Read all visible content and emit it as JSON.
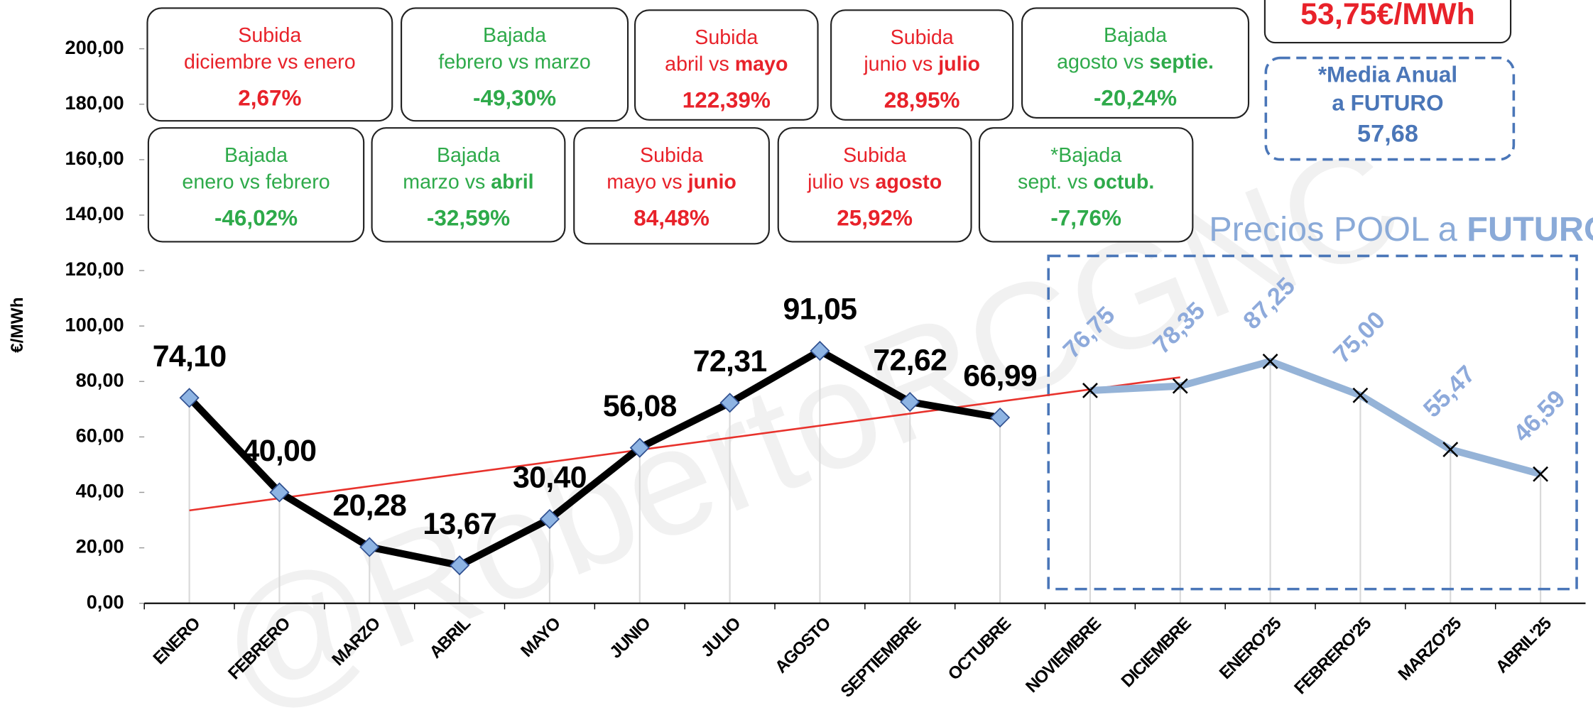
{
  "chart_data": {
    "type": "line",
    "y_label": "€/MWh",
    "categories": [
      "ENERO",
      "FEBRERO",
      "MARZO",
      "ABRIL",
      "MAYO",
      "JUNIO",
      "JULIO",
      "AGOSTO",
      "SEPTIEMBRE",
      "OCTUBRE",
      "NOVIEMBRE",
      "DICIEMBRE",
      "ENERO'25",
      "FEBRERO'25",
      "MARZO'25",
      "ABRIL'25"
    ],
    "series": [
      {
        "color": "#000000",
        "marker": "diamond",
        "marker_color": "#8eb4e3",
        "label_color": "#000000",
        "values": [
          74.1,
          40.0,
          20.28,
          13.67,
          30.4,
          56.08,
          72.31,
          91.05,
          72.62,
          66.99,
          null,
          null,
          null,
          null,
          null,
          null
        ],
        "value_labels": [
          "74,10",
          "40,00",
          "20,28",
          "13,67",
          "30,40",
          "56,08",
          "72,31",
          "91,05",
          "72,62",
          "66,99",
          null,
          null,
          null,
          null,
          null,
          null
        ]
      },
      {
        "color": "#95b3d7",
        "marker": "x",
        "marker_color": "#000000",
        "label_color": "#8eaadb",
        "label_rotation": -45,
        "values": [
          null,
          null,
          null,
          null,
          null,
          null,
          null,
          null,
          null,
          null,
          76.75,
          78.35,
          87.25,
          75.0,
          55.47,
          46.59
        ],
        "value_labels": [
          null,
          null,
          null,
          null,
          null,
          null,
          null,
          null,
          null,
          null,
          "76,75",
          "78,35",
          "87,25",
          "75,00",
          "55,47",
          "46,59"
        ]
      }
    ],
    "trendline": {
      "x": [
        "ENERO",
        "DICIEMBRE"
      ],
      "values": [
        33.5,
        81.5
      ],
      "color": "#e8322c"
    },
    "ylim": [
      0,
      200
    ],
    "yticks": [
      {
        "value": 0,
        "label": "0,00"
      },
      {
        "value": 20,
        "label": "20,00"
      },
      {
        "value": 40,
        "label": "40,00"
      },
      {
        "value": 60,
        "label": "60,00"
      },
      {
        "value": 80,
        "label": "80,00"
      },
      {
        "value": 100,
        "label": "100,00"
      },
      {
        "value": 120,
        "label": "120,00"
      },
      {
        "value": 140,
        "label": "140,00"
      },
      {
        "value": 160,
        "label": "160,00"
      },
      {
        "value": 180,
        "label": "180,00"
      },
      {
        "value": 200,
        "label": "200,00"
      }
    ],
    "drop_lines": true,
    "comparisons": [
      {
        "heading": "Subida",
        "text": "diciembre vs enero",
        "emph": "",
        "value": "2,67%",
        "color": "#e8222a"
      },
      {
        "heading": "Bajada",
        "text": "febrero vs marzo",
        "emph": "",
        "value": "-49,30%",
        "color": "#2eaa4a"
      },
      {
        "heading": "Subida",
        "text": "abril vs",
        "emph": "mayo",
        "value": "122,39%",
        "color": "#e8222a"
      },
      {
        "heading": "Subida",
        "text": "junio vs",
        "emph": "julio",
        "value": "28,95%",
        "color": "#e8222a"
      },
      {
        "heading": "Bajada",
        "text": "agosto vs",
        "emph": "septie.",
        "value": "-20,24%",
        "color": "#2eaa4a"
      },
      {
        "heading": "Bajada",
        "text": "enero vs febrero",
        "emph": "",
        "value": "-46,02%",
        "color": "#2eaa4a"
      },
      {
        "heading": "Bajada",
        "text": "marzo vs",
        "emph": "abril",
        "value": "-32,59%",
        "color": "#2eaa4a"
      },
      {
        "heading": "Subida",
        "text": "mayo vs",
        "emph": "junio",
        "value": "84,48%",
        "color": "#e8222a"
      },
      {
        "heading": "Subida",
        "text": "julio vs",
        "emph": "agosto",
        "value": "25,92%",
        "color": "#e8222a"
      },
      {
        "heading": "*Bajada",
        "text": "sept. vs",
        "emph": "octub.",
        "value": "-7,76%",
        "color": "#2eaa4a"
      }
    ],
    "headline": "53,75€/MWh",
    "forecast_average": {
      "line1": "*Media Anual",
      "line2": "a FUTURO",
      "value": "57,68"
    },
    "forecast_label": {
      "text": "Precios POOL a",
      "emph": "FUTURO"
    },
    "watermark": "@RobertoRCGNC"
  }
}
